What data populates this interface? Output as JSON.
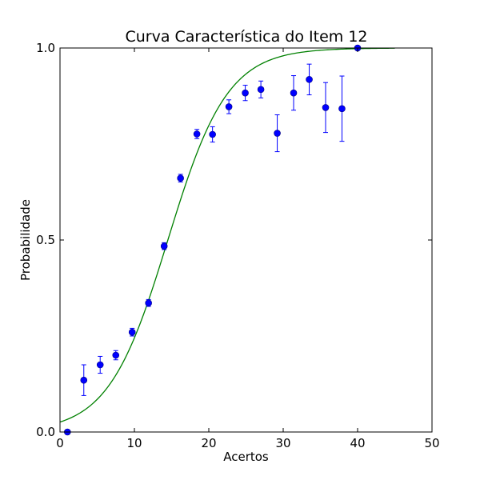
{
  "chart_data": {
    "type": "scatter",
    "title": "Curva Característica do Item 12",
    "xlabel": "Acertos",
    "ylabel": "Probabilidade",
    "xlim": [
      0,
      50
    ],
    "ylim": [
      0.0,
      1.0
    ],
    "xticks": [
      0,
      10,
      20,
      30,
      40,
      50
    ],
    "xtick_labels": [
      "0",
      "10",
      "20",
      "30",
      "40",
      "50"
    ],
    "yticks": [
      0.0,
      0.5,
      1.0
    ],
    "ytick_labels": [
      "0.0",
      "0.5",
      "1.0"
    ],
    "grid": false,
    "colors": {
      "points": "#0000ff",
      "errorbars": "#0000ff",
      "curve": "#008000"
    },
    "observed": [
      {
        "x": 1.0,
        "y": 0.0,
        "err": 0.0
      },
      {
        "x": 3.2,
        "y": 0.135,
        "err": 0.04
      },
      {
        "x": 5.4,
        "y": 0.175,
        "err": 0.022
      },
      {
        "x": 7.5,
        "y": 0.2,
        "err": 0.012
      },
      {
        "x": 9.7,
        "y": 0.26,
        "err": 0.01
      },
      {
        "x": 11.9,
        "y": 0.336,
        "err": 0.009
      },
      {
        "x": 14.0,
        "y": 0.484,
        "err": 0.009
      },
      {
        "x": 16.2,
        "y": 0.661,
        "err": 0.01
      },
      {
        "x": 18.4,
        "y": 0.776,
        "err": 0.012
      },
      {
        "x": 20.5,
        "y": 0.775,
        "err": 0.02
      },
      {
        "x": 22.7,
        "y": 0.847,
        "err": 0.018
      },
      {
        "x": 24.9,
        "y": 0.883,
        "err": 0.02
      },
      {
        "x": 27.0,
        "y": 0.892,
        "err": 0.022
      },
      {
        "x": 29.2,
        "y": 0.778,
        "err": 0.048
      },
      {
        "x": 31.4,
        "y": 0.883,
        "err": 0.045
      },
      {
        "x": 33.5,
        "y": 0.918,
        "err": 0.04
      },
      {
        "x": 35.7,
        "y": 0.845,
        "err": 0.065
      },
      {
        "x": 37.9,
        "y": 0.842,
        "err": 0.085
      },
      {
        "x": 40.0,
        "y": 1.0,
        "err": 0.0
      }
    ],
    "fitted_curve": {
      "type": "line",
      "model": "logistic",
      "midpoint": 14.5,
      "slope": 0.25,
      "x_range": [
        0,
        45
      ]
    }
  }
}
